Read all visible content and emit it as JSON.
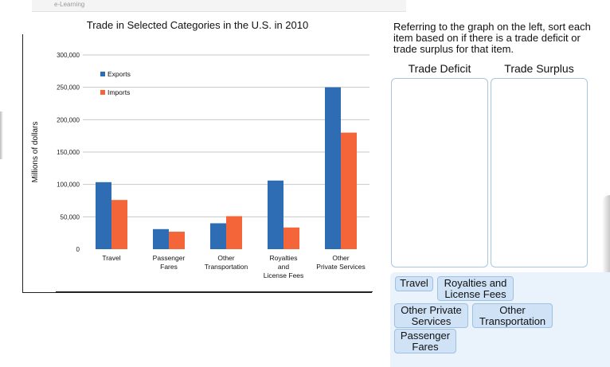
{
  "header": {
    "crumb": "e-Learning"
  },
  "chart_data": {
    "type": "bar",
    "title": "Trade in Selected Categories in the U.S. in 2010",
    "ylabel": "Millions of dollars",
    "xlabel": "",
    "ylim": [
      0,
      300000
    ],
    "yticks": [
      0,
      50000,
      100000,
      150000,
      200000,
      250000,
      300000
    ],
    "ytick_labels": [
      "0",
      "50,000",
      "100,000",
      "150,000",
      "200,000",
      "250,000",
      "300,000"
    ],
    "categories": [
      "Travel",
      "Passenger Fares",
      "Other Transportation",
      "Royalties and License Fees",
      "Other Private Services"
    ],
    "category_lines": [
      [
        "Travel"
      ],
      [
        "Passenger",
        "Fares"
      ],
      [
        "Other",
        "Transportation"
      ],
      [
        "Royalties",
        "and",
        "License Fees"
      ],
      [
        "Other",
        "Private Services"
      ]
    ],
    "series": [
      {
        "name": "Exports",
        "color": "#2e6db4",
        "values": [
          103500,
          31000,
          40000,
          106000,
          250000
        ]
      },
      {
        "name": "Imports",
        "color": "#f4663a",
        "values": [
          76000,
          27000,
          51000,
          33500,
          180000
        ]
      }
    ],
    "legend": "top-left",
    "grid": true
  },
  "task": {
    "prompt": "Referring to the graph on the left, sort each item based on if there is a trade deficit or trade surplus for that item.",
    "deficit_label": "Trade Deficit",
    "surplus_label": "Trade Surplus"
  },
  "cards": {
    "travel": "Travel",
    "royalties": "Royalties and License Fees",
    "other_private": "Other Private Services",
    "other_transport": "Other Transportation",
    "passenger": "Passenger Fares"
  }
}
